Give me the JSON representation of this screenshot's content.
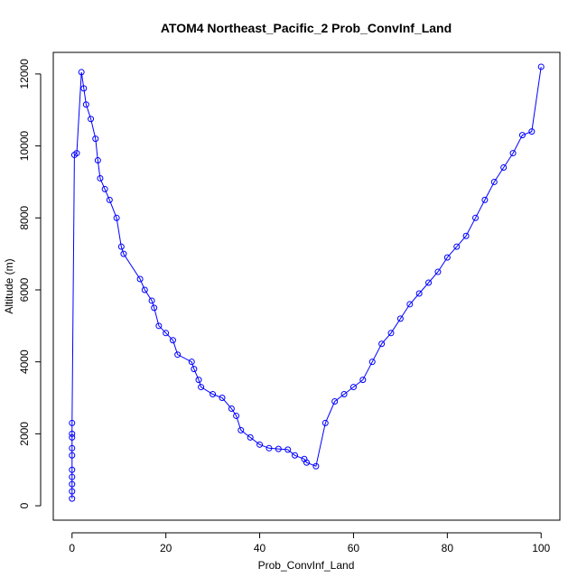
{
  "chart_data": {
    "type": "line",
    "title": "ATOM4 Northeast_Pacific_2 Prob_ConvInf_Land",
    "xlabel": "Prob_ConvInf_Land",
    "ylabel": "Altitude (m)",
    "xlim": [
      -4,
      104
    ],
    "ylim": [
      -400,
      12600
    ],
    "xticks": [
      0,
      20,
      40,
      60,
      80,
      100
    ],
    "yticks": [
      0,
      2000,
      4000,
      6000,
      8000,
      10000,
      12000
    ],
    "grid": false,
    "markers": "open-circle",
    "series": [
      {
        "color": "#0000ff",
        "x": [
          0,
          0,
          0,
          0,
          0,
          0,
          0,
          0,
          0,
          0,
          0.5,
          1,
          2,
          2.5,
          3,
          4,
          5,
          5.5,
          6,
          7,
          8,
          9.5,
          10.5,
          11,
          14.5,
          15.5,
          17,
          17.5,
          18.5,
          20,
          21.5,
          22.5,
          25.5,
          26,
          27,
          27.5,
          30,
          32,
          34,
          35,
          36,
          38,
          40,
          42,
          44,
          46,
          47.5,
          49.5,
          50,
          52,
          54,
          56,
          58,
          60,
          62,
          64,
          66,
          68,
          70,
          72,
          74,
          76,
          78,
          80,
          82,
          84,
          86,
          88,
          90,
          92,
          94,
          96,
          98,
          100
        ],
        "y": [
          200,
          400,
          600,
          800,
          1000,
          1400,
          1600,
          1900,
          2000,
          2300,
          9750,
          9800,
          12050,
          11600,
          11150,
          10750,
          10200,
          9600,
          9100,
          8800,
          8500,
          8000,
          7200,
          7000,
          6300,
          6000,
          5700,
          5500,
          5000,
          4800,
          4600,
          4200,
          4000,
          3800,
          3500,
          3300,
          3100,
          3000,
          2700,
          2500,
          2100,
          1900,
          1700,
          1600,
          1580,
          1560,
          1400,
          1300,
          1200,
          1100,
          2300,
          2900,
          3100,
          3300,
          3500,
          4000,
          4500,
          4800,
          5200,
          5600,
          5900,
          6200,
          6500,
          6900,
          7200,
          7500,
          8000,
          8500,
          9000,
          9400,
          9800,
          10300,
          10400,
          12200
        ]
      }
    ]
  }
}
